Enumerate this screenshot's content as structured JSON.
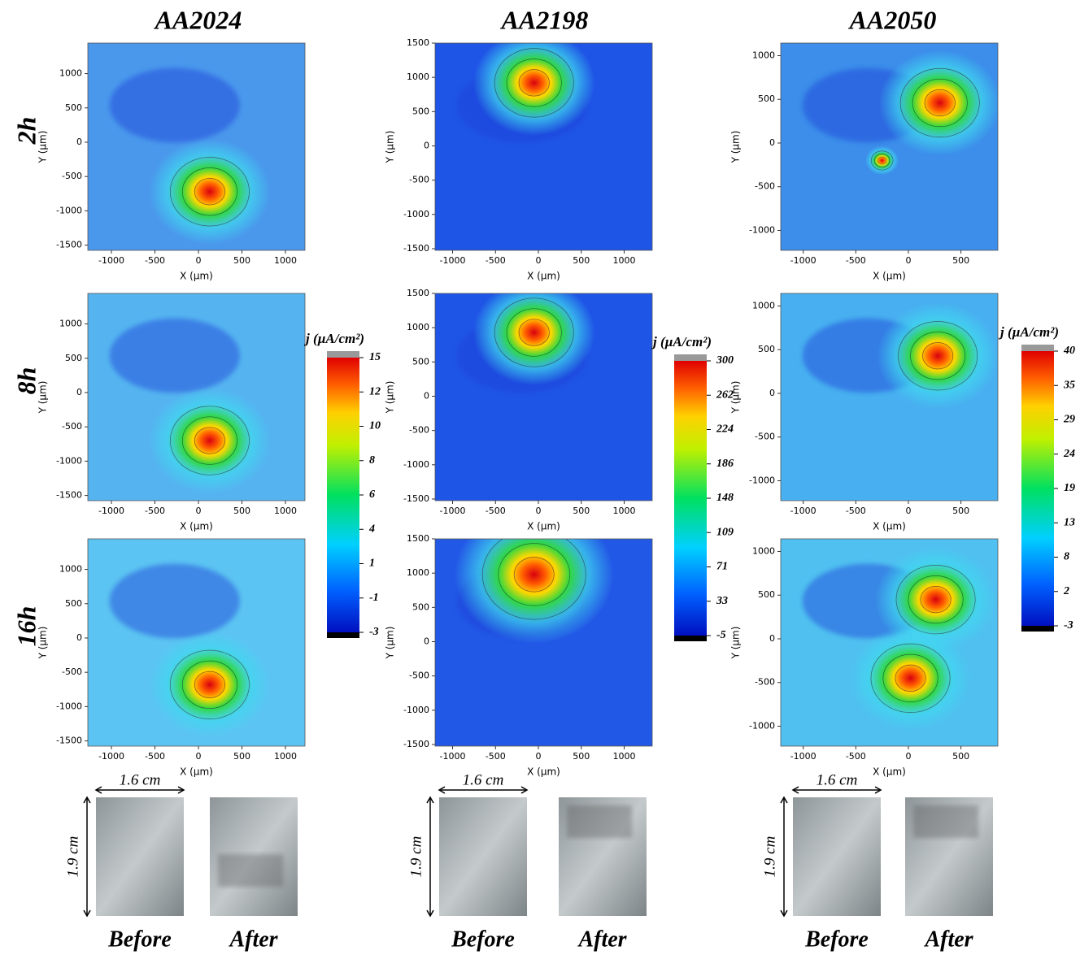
{
  "columns": [
    {
      "title": "AA2024",
      "xlim": [
        -1271,
        1224
      ],
      "xticks": [
        -1000,
        -500,
        0,
        500,
        1000
      ],
      "ylim": [
        -1576,
        1445
      ],
      "yticks": [
        -1500,
        -1000,
        -500,
        0,
        500,
        1000
      ],
      "colorbar": {
        "title": "j (µA/cm²)",
        "levels": [
          -3,
          -1,
          1,
          4,
          6,
          8,
          10,
          12,
          15
        ]
      },
      "panels": [
        {
          "peaks": [
            {
              "x": 130,
              "y": -720
            }
          ]
        },
        {
          "peaks": [
            {
              "x": 130,
              "y": -700
            }
          ]
        },
        {
          "peaks": [
            {
              "x": 130,
              "y": -680
            }
          ]
        }
      ]
    },
    {
      "title": "AA2198",
      "xlim": [
        -1204,
        1327
      ],
      "xticks": [
        -1000,
        -500,
        0,
        500,
        1000
      ],
      "ylim": [
        -1524,
        1500
      ],
      "yticks": [
        -1500,
        -1000,
        -500,
        0,
        500,
        1000,
        1500
      ],
      "colorbar": {
        "title": "j (µA/cm²)",
        "levels": [
          -5,
          33,
          71,
          109,
          148,
          186,
          224,
          262,
          300
        ]
      },
      "panels": [
        {
          "peaks": [
            {
              "x": -50,
              "y": 920
            }
          ]
        },
        {
          "peaks": [
            {
              "x": -50,
              "y": 930
            }
          ]
        },
        {
          "peaks": [
            {
              "x": -50,
              "y": 980
            }
          ]
        }
      ]
    },
    {
      "title": "AA2050",
      "xlim": [
        -1214,
        851
      ],
      "xticks": [
        -1000,
        -500,
        0,
        500
      ],
      "ylim": [
        -1228,
        1144
      ],
      "yticks": [
        -1000,
        -500,
        0,
        500,
        1000
      ],
      "colorbar": {
        "title": "j (µA/cm²)",
        "levels": [
          -3,
          2,
          8,
          13,
          19,
          24,
          29,
          35,
          40
        ]
      },
      "panels": [
        {
          "peaks": [
            {
              "x": 300,
              "y": 460
            },
            {
              "x": -250,
              "y": -200
            }
          ]
        },
        {
          "peaks": [
            {
              "x": 280,
              "y": 430
            }
          ]
        },
        {
          "peaks": [
            {
              "x": 260,
              "y": 450
            },
            {
              "x": 20,
              "y": -450
            }
          ]
        }
      ]
    }
  ],
  "rows": [
    "2h",
    "8h",
    "16h"
  ],
  "x_label": "X (µm)",
  "y_label": "Y (µm)",
  "photos": {
    "width_label": "1.6 cm",
    "height_label": "1.9 cm",
    "before": "Before",
    "after": "After"
  }
}
